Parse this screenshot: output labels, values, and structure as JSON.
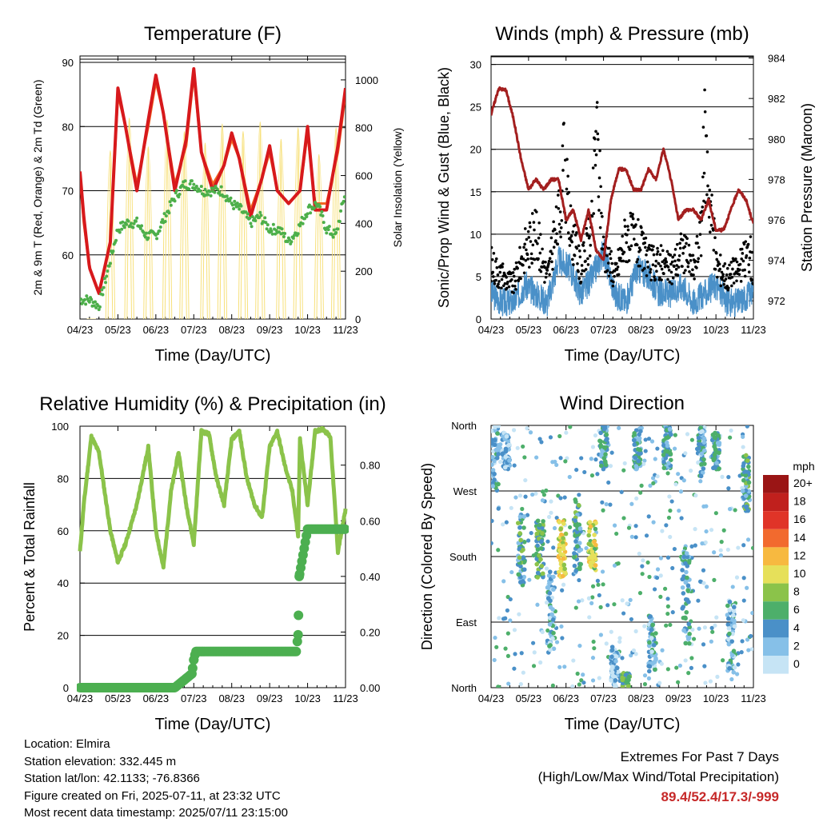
{
  "chart_data": [
    {
      "type": "line",
      "title": "Temperature (F)",
      "xlabel": "Time (Day/UTC)",
      "ylabel": "2m & 9m T (Red, Orange) & 2m Td (Green)",
      "y2label": "Solar Insolation (Yellow)",
      "x_ticks": [
        "04/23",
        "05/23",
        "06/23",
        "07/23",
        "08/23",
        "09/23",
        "10/23",
        "11/23"
      ],
      "y_ticks": [
        60,
        70,
        80,
        90
      ],
      "y2_ticks": [
        0,
        200,
        400,
        600,
        800,
        1000
      ],
      "ylim": [
        50,
        91
      ],
      "y2lim": [
        0,
        1100
      ],
      "grid": true,
      "series": [
        {
          "name": "2m T",
          "color": "#d7191c",
          "style": "dotted-line",
          "x": [
            0,
            0.1,
            0.25,
            0.5,
            0.8,
            1.0,
            1.2,
            1.5,
            1.8,
            2.0,
            2.2,
            2.5,
            2.8,
            3.0,
            3.2,
            3.5,
            3.8,
            4.0,
            4.2,
            4.5,
            4.8,
            5.0,
            5.2,
            5.5,
            5.8,
            6.0,
            6.2,
            6.5,
            6.8,
            7.0
          ],
          "values": [
            73,
            66,
            58,
            54,
            62,
            86,
            80,
            70,
            81,
            88,
            82,
            70,
            78,
            89,
            76,
            70,
            74,
            79,
            75,
            66,
            72,
            77,
            70,
            68,
            70,
            80,
            67,
            67,
            77,
            86
          ]
        },
        {
          "name": "9m T",
          "color": "#f26522",
          "style": "dotted-line",
          "x": [
            0,
            0.1,
            0.25,
            0.5,
            0.8,
            1.0,
            1.2,
            1.5,
            1.8,
            2.0,
            2.2,
            2.5,
            2.8,
            3.0,
            3.2,
            3.5,
            3.8,
            4.0,
            4.2,
            4.5,
            4.8,
            5.0,
            5.2,
            5.5,
            5.8,
            6.0,
            6.2,
            6.5,
            6.8,
            7.0
          ],
          "values": [
            72,
            65,
            58,
            54,
            62,
            85,
            80,
            71,
            80,
            87,
            82,
            71,
            77,
            88,
            76,
            71,
            74,
            78,
            75,
            67,
            72,
            76,
            70,
            68,
            70,
            79,
            68,
            68,
            76,
            85
          ]
        },
        {
          "name": "2m Td",
          "color": "#4daf4a",
          "style": "dots",
          "x": [
            0,
            0.25,
            0.5,
            0.75,
            1.0,
            1.25,
            1.5,
            1.75,
            2.0,
            2.25,
            2.5,
            2.75,
            3.0,
            3.25,
            3.5,
            3.75,
            4.0,
            4.25,
            4.5,
            4.75,
            5.0,
            5.25,
            5.5,
            5.75,
            6.0,
            6.25,
            6.5,
            6.75,
            7.0
          ],
          "values": [
            53,
            53,
            52,
            58,
            64,
            65,
            65,
            63,
            63,
            66,
            69,
            71,
            71,
            70,
            70,
            70,
            68,
            67,
            65,
            66,
            64,
            64,
            62,
            64,
            67,
            68,
            64,
            63,
            70
          ]
        },
        {
          "name": "Solar Insolation",
          "axis": "y2",
          "color": "#f7e07a",
          "style": "thin-line",
          "daily_peaks": [
            0,
            880,
            1050,
            900,
            1040,
            980,
            920,
            1020,
            980,
            1030,
            940,
            1000,
            860,
            1000
          ],
          "peak_day_offsets": [
            0.3,
            0.8,
            1.3,
            1.8,
            2.3,
            2.75,
            3.3,
            3.75,
            4.3,
            4.75,
            5.3,
            5.75,
            6.3,
            6.75
          ]
        }
      ]
    },
    {
      "type": "line",
      "title": "Winds (mph) & Pressure (mb)",
      "xlabel": "Time (Day/UTC)",
      "ylabel": "Sonic/Prop Wind & Gust (Blue, Black)",
      "y2label": "Station Pressure (Maroon)",
      "x_ticks": [
        "04/23",
        "05/23",
        "06/23",
        "07/23",
        "08/23",
        "09/23",
        "10/23",
        "11/23"
      ],
      "y_ticks": [
        0,
        5,
        10,
        15,
        20,
        25,
        30
      ],
      "y2_ticks": [
        972,
        974,
        976,
        978,
        980,
        982,
        984
      ],
      "ylim": [
        0,
        31
      ],
      "y2lim": [
        971.1,
        984.1
      ],
      "grid": true,
      "series": [
        {
          "name": "Wind",
          "color": "#4a90c8",
          "style": "line",
          "x": [
            0,
            0.3,
            0.6,
            0.9,
            1.2,
            1.5,
            1.8,
            2.1,
            2.4,
            2.7,
            3.0,
            3.3,
            3.6,
            3.9,
            4.2,
            4.5,
            4.8,
            5.1,
            5.4,
            5.7,
            6.0,
            6.3,
            6.6,
            6.9,
            7.0
          ],
          "values": [
            3,
            2,
            2,
            4,
            3,
            2,
            7,
            6,
            3,
            5,
            8,
            3,
            2,
            6,
            5,
            3,
            3,
            4,
            2,
            3,
            4,
            2,
            2,
            3,
            3
          ]
        },
        {
          "name": "Gust",
          "color": "#000000",
          "style": "dots",
          "x": [
            0,
            0.3,
            0.6,
            0.9,
            1.2,
            1.5,
            1.8,
            1.95,
            2.1,
            2.4,
            2.7,
            2.8,
            3.0,
            3.3,
            3.6,
            3.9,
            4.2,
            4.5,
            4.8,
            5.1,
            5.4,
            5.6,
            5.7,
            6.0,
            6.3,
            6.6,
            6.9,
            7.0
          ],
          "values": [
            8,
            6,
            5,
            10,
            12,
            6,
            14,
            22,
            13,
            7,
            13,
            28,
            10,
            6,
            12,
            11,
            8,
            8,
            7,
            10,
            7,
            12,
            26,
            8,
            6,
            7,
            10,
            6
          ]
        },
        {
          "name": "Pressure",
          "axis": "y2",
          "color": "#a31f1f",
          "style": "line",
          "x": [
            0,
            0.2,
            0.4,
            0.6,
            0.8,
            1.0,
            1.2,
            1.4,
            1.6,
            1.8,
            2.0,
            2.2,
            2.4,
            2.6,
            2.8,
            3.0,
            3.2,
            3.4,
            3.6,
            3.8,
            4.0,
            4.2,
            4.4,
            4.6,
            4.8,
            5.0,
            5.2,
            5.4,
            5.6,
            5.8,
            6.0,
            6.2,
            6.4,
            6.6,
            6.8,
            7.0
          ],
          "values": [
            981.2,
            982.5,
            982.4,
            981.0,
            979.0,
            977.5,
            978.0,
            977.5,
            978.0,
            978.0,
            976.0,
            976.5,
            975.0,
            976.5,
            974.5,
            974.0,
            977.0,
            978.5,
            978.5,
            977.5,
            977.5,
            978.5,
            978.0,
            979.5,
            978.0,
            976.0,
            976.5,
            976.5,
            976.0,
            977.0,
            975.5,
            975.5,
            976.5,
            977.5,
            977.0,
            975.8
          ]
        }
      ]
    },
    {
      "type": "line",
      "title": "Relative Humidity (%) & Precipitation (in)",
      "xlabel": "Time (Day/UTC)",
      "ylabel": "Percent & Total Rainfall",
      "x_ticks": [
        "04/23",
        "05/23",
        "06/23",
        "07/23",
        "08/23",
        "09/23",
        "10/23",
        "11/23"
      ],
      "y_ticks": [
        0,
        20,
        40,
        60,
        80,
        100
      ],
      "y2_ticks": [
        "0.00",
        "0.20",
        "0.40",
        "0.60",
        "0.80"
      ],
      "ylim": [
        0,
        100
      ],
      "y2lim": [
        0,
        0.94
      ],
      "grid": true,
      "series": [
        {
          "name": "Relative Humidity",
          "color": "#8bc34a",
          "style": "thick-line",
          "x": [
            0,
            0.1,
            0.3,
            0.5,
            0.8,
            1.0,
            1.2,
            1.5,
            1.8,
            2.0,
            2.2,
            2.4,
            2.6,
            2.8,
            3.0,
            3.2,
            3.4,
            3.6,
            3.8,
            4.0,
            4.2,
            4.4,
            4.6,
            4.8,
            5.0,
            5.2,
            5.4,
            5.6,
            5.75,
            5.8,
            6.0,
            6.2,
            6.4,
            6.6,
            6.8,
            7.0
          ],
          "values": [
            52,
            70,
            96,
            90,
            60,
            48,
            55,
            70,
            92,
            60,
            46,
            75,
            90,
            70,
            55,
            98,
            97,
            80,
            70,
            95,
            98,
            80,
            70,
            65,
            92,
            98,
            85,
            75,
            58,
            95,
            70,
            98,
            99,
            96,
            52,
            68
          ]
        },
        {
          "name": "Total Precipitation",
          "axis": "y2",
          "color": "#4caf50",
          "style": "big-dots",
          "x": [
            0,
            0.5,
            1.0,
            1.5,
            2.0,
            2.5,
            2.95,
            3.0,
            3.05,
            3.1,
            3.5,
            4.0,
            4.5,
            5.0,
            5.5,
            5.7,
            5.75,
            5.78,
            6.0,
            6.5,
            7.0
          ],
          "values": [
            0,
            0,
            0,
            0,
            0,
            0,
            0.05,
            0.1,
            0.13,
            0.13,
            0.13,
            0.13,
            0.13,
            0.13,
            0.13,
            0.13,
            0.19,
            0.4,
            0.57,
            0.57,
            0.57
          ]
        }
      ]
    },
    {
      "type": "scatter",
      "title": "Wind Direction",
      "xlabel": "Time (Day/UTC)",
      "ylabel": "Direction (Colored By Speed)",
      "x_ticks": [
        "04/23",
        "05/23",
        "06/23",
        "07/23",
        "08/23",
        "09/23",
        "10/23",
        "11/23"
      ],
      "y_ticks": [
        "North",
        "East",
        "South",
        "West",
        "North"
      ],
      "y_values": [
        0,
        90,
        180,
        270,
        360
      ],
      "grid": true,
      "colorbar": {
        "title": "mph",
        "labels": [
          "0",
          "2",
          "4",
          "6",
          "8",
          "10",
          "12",
          "14",
          "16",
          "18",
          "20+"
        ],
        "colors": [
          "#c6e4f5",
          "#86c0e8",
          "#4a90c8",
          "#4daf6a",
          "#8bc34a",
          "#e6e05a",
          "#f7b940",
          "#f26a2e",
          "#e03428",
          "#c0201d",
          "#9a1515"
        ]
      },
      "clusters": [
        {
          "day": 0.1,
          "dir_range": [
            270,
            360
          ],
          "speed": 3
        },
        {
          "day": 0.4,
          "dir_range": [
            300,
            350
          ],
          "speed": 2
        },
        {
          "day": 0.8,
          "dir_range": [
            140,
            240
          ],
          "speed": 5
        },
        {
          "day": 1.3,
          "dir_range": [
            150,
            230
          ],
          "speed": 6
        },
        {
          "day": 1.6,
          "dir_range": [
            40,
            160
          ],
          "speed": 3
        },
        {
          "day": 1.9,
          "dir_range": [
            150,
            230
          ],
          "speed": 10
        },
        {
          "day": 2.3,
          "dir_range": [
            160,
            260
          ],
          "speed": 5
        },
        {
          "day": 2.7,
          "dir_range": [
            160,
            230
          ],
          "speed": 9
        },
        {
          "day": 3.0,
          "dir_range": [
            300,
            360
          ],
          "speed": 4
        },
        {
          "day": 3.3,
          "dir_range": [
            0,
            60
          ],
          "speed": 2
        },
        {
          "day": 3.6,
          "dir_range": [
            0,
            20
          ],
          "speed": 6
        },
        {
          "day": 3.9,
          "dir_range": [
            300,
            360
          ],
          "speed": 4
        },
        {
          "day": 4.3,
          "dir_range": [
            20,
            100
          ],
          "speed": 3
        },
        {
          "day": 4.7,
          "dir_range": [
            300,
            360
          ],
          "speed": 4
        },
        {
          "day": 5.2,
          "dir_range": [
            60,
            190
          ],
          "speed": 4
        },
        {
          "day": 5.6,
          "dir_range": [
            290,
            360
          ],
          "speed": 3
        },
        {
          "day": 6.0,
          "dir_range": [
            300,
            350
          ],
          "speed": 4
        },
        {
          "day": 6.4,
          "dir_range": [
            20,
            120
          ],
          "speed": 3
        },
        {
          "day": 6.8,
          "dir_range": [
            240,
            320
          ],
          "speed": 5
        }
      ]
    }
  ],
  "footer": {
    "location": "Location: Elmira",
    "elevation": "Station elevation: 332.445 m",
    "latlon": "Station lat/lon: 42.1133; -76.8366",
    "created": "Figure created on Fri, 2025-07-11, at 23:32 UTC",
    "recent": "Most recent data timestamp: 2025/07/11 23:15:00",
    "extremes_title": "Extremes For Past 7 Days",
    "extremes_subtitle": "(High/Low/Max Wind/Total Precipitation)",
    "extremes_values": "89.4/52.4/17.3/-999"
  }
}
